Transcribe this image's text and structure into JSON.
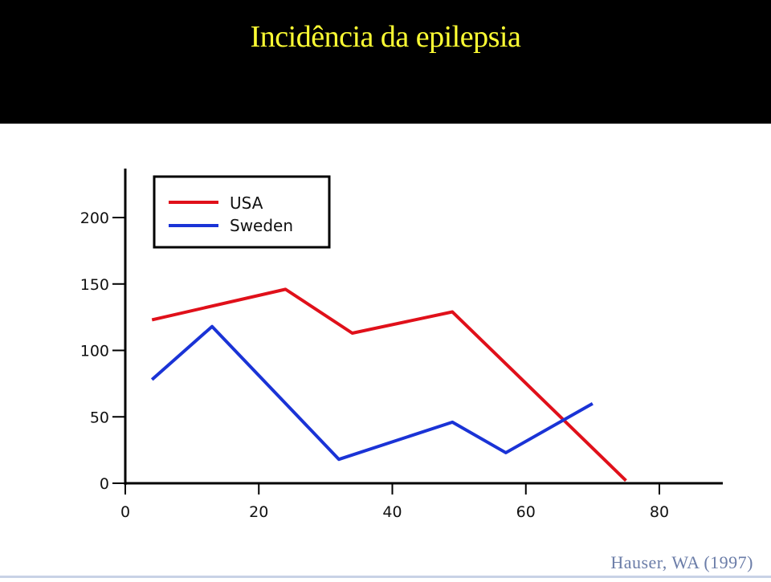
{
  "header": {
    "title": "Incidência da epilepsia"
  },
  "credit": "Hauser, WA (1997)",
  "colors": {
    "header_bg": "#000000",
    "title": "#ffff33",
    "usa": "#e0101a",
    "sweden": "#1a33d6",
    "credit": "#6b7da8"
  },
  "chart_data": {
    "type": "line",
    "title": "",
    "xlabel": "",
    "ylabel": "",
    "xlim": [
      0,
      90
    ],
    "ylim": [
      0,
      230
    ],
    "x_ticks": [
      0,
      20,
      40,
      60,
      80
    ],
    "y_ticks": [
      0,
      50,
      100,
      150,
      200
    ],
    "grid": false,
    "legend_position": "top-left",
    "series": [
      {
        "name": "USA",
        "color": "#e0101a",
        "points": [
          [
            4,
            123
          ],
          [
            24,
            146
          ],
          [
            34,
            113
          ],
          [
            49,
            129
          ],
          [
            75,
            2
          ]
        ]
      },
      {
        "name": "Sweden",
        "color": "#1a33d6",
        "points": [
          [
            4,
            78
          ],
          [
            13,
            118
          ],
          [
            32,
            18
          ],
          [
            49,
            46
          ],
          [
            57,
            23
          ],
          [
            70,
            60
          ]
        ]
      }
    ]
  }
}
